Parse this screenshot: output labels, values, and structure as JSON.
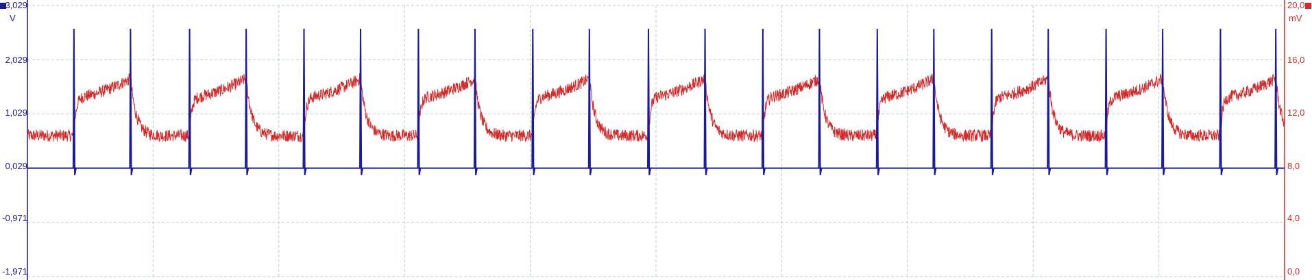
{
  "chart_data": {
    "type": "line",
    "title": "",
    "grid": true,
    "colors": {
      "left_axis": "#1a1a9a",
      "right_axis": "#d42a2a",
      "background": "#ffffff",
      "grid": "#b8ccd4"
    },
    "axes": {
      "left": {
        "unit": "V",
        "ticks": [
          "3,029",
          "2,029",
          "1,029",
          "0,029",
          "-0,971",
          "-1,971"
        ],
        "ylim": [
          -1.971,
          3.029
        ]
      },
      "right": {
        "unit": "mV",
        "ticks": [
          "20,0",
          "16,0",
          "12,0",
          "8,0",
          "4,0",
          "0,0"
        ],
        "ylim": [
          0,
          20
        ]
      },
      "x": {
        "ticks": [],
        "xlim": [
          0,
          100
        ],
        "gridlines": 10
      }
    },
    "series": [
      {
        "axis": "left",
        "color": "#1a1a9a",
        "baseline": 0.029,
        "spike_peak": 2.6,
        "spike_dip": -0.1,
        "spike_times": [
          3.7,
          8.2,
          12.9,
          17.4,
          22.0,
          26.5,
          31.1,
          35.6,
          40.2,
          44.7,
          49.4,
          53.9,
          58.5,
          63.0,
          67.6,
          72.1,
          76.7,
          81.2,
          85.8,
          90.3,
          94.9,
          99.3
        ]
      },
      {
        "axis": "right",
        "color": "#d42a2a",
        "shape": {
          "low_mV": 10.4,
          "rise_mV": 13.2,
          "peak_mV": 14.6,
          "noise_mV": 0.45,
          "high_intervals": [
            [
              3.7,
              8.2
            ],
            [
              12.9,
              17.4
            ],
            [
              22.0,
              26.5
            ],
            [
              31.1,
              35.6
            ],
            [
              40.2,
              44.7
            ],
            [
              49.4,
              53.9
            ],
            [
              58.5,
              63.0
            ],
            [
              67.6,
              72.1
            ],
            [
              76.7,
              81.2
            ],
            [
              85.8,
              90.3
            ],
            [
              94.9,
              99.3
            ]
          ]
        }
      }
    ]
  }
}
